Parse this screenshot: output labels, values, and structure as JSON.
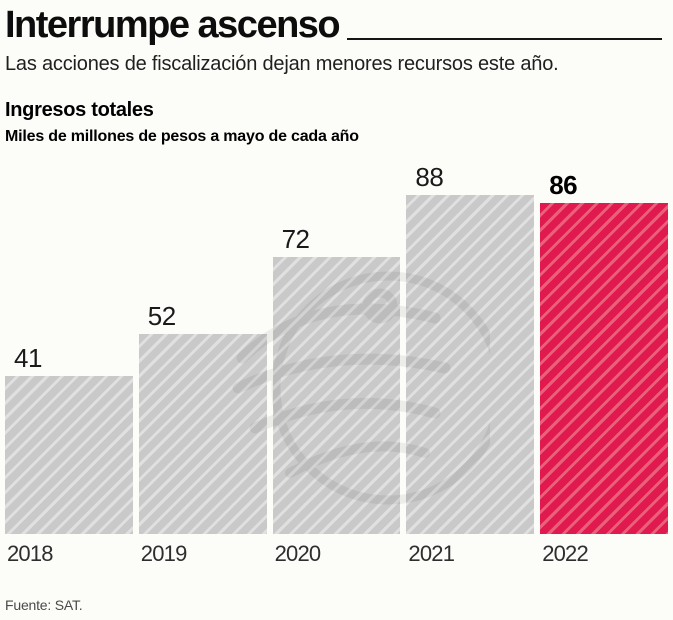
{
  "header": {
    "title": "Interrumpe ascenso",
    "subtitle": "Las acciones de fiscalización dejan menores recursos este año."
  },
  "chart": {
    "heading": "Ingresos totales",
    "subheading": "Miles de millones de pesos a mayo de cada año"
  },
  "footer": {
    "source": "Fuente: SAT."
  },
  "colors": {
    "background": "#fcfcf9",
    "bar_default": "#c9c9c9",
    "bar_default_stripe": "#e0e0e0",
    "bar_highlight": "#e01a4e",
    "bar_highlight_stripe": "#ea607b",
    "title_text": "#0d0d0d",
    "watermark_gray": "#9a9a9a"
  },
  "chart_data": {
    "type": "bar",
    "categories": [
      "2018",
      "2019",
      "2020",
      "2021",
      "2022"
    ],
    "values": [
      41,
      52,
      72,
      88,
      86
    ],
    "highlight_index": 4,
    "highlight_category": "2022",
    "title": "Ingresos totales",
    "subtitle": "Miles de millones de pesos a mayo de cada año",
    "xlabel": "",
    "ylabel": "",
    "ylim": [
      0,
      88
    ],
    "grid": false,
    "legend": false,
    "value_labels": true,
    "source": "Fuente: SAT.",
    "bar_style": "diagonal-hatch"
  }
}
